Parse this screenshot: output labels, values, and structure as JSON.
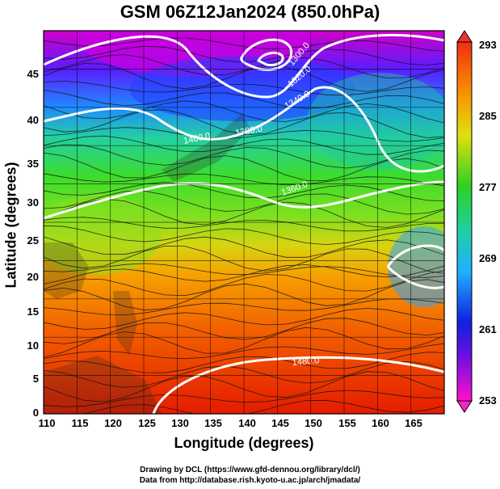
{
  "title": "GSM 06Z12Jan2024 (850.0hPa)",
  "xaxis": {
    "label": "Longitude (degrees)",
    "ticks": [
      "110",
      "115",
      "120",
      "125",
      "130",
      "135",
      "140",
      "145",
      "150",
      "155",
      "160",
      "165"
    ],
    "range": [
      110,
      170
    ]
  },
  "yaxis": {
    "label": "Latitude  (degrees)",
    "ticks": [
      "0",
      "5",
      "10",
      "15",
      "20",
      "25",
      "30",
      "35",
      "40",
      "45"
    ],
    "range": [
      0,
      50
    ]
  },
  "colorbar": {
    "ticks": [
      "253",
      "261",
      "269",
      "277",
      "285",
      "293"
    ],
    "range": [
      253,
      293
    ]
  },
  "contour_labels": [
    "1400.0",
    "1380.0",
    "1360.0",
    "1340.0",
    "1320.0",
    "1300.0",
    "1480.0"
  ],
  "credits": {
    "line1": "Drawing by DCL (https://www.gfd-dennou.org/library/dcl/)",
    "line2": "Data from http://database.rish.kyoto-u.ac.jp/arch/jmadata/"
  },
  "colors": {
    "cold": "#d800d8",
    "cool": "#1a3cff",
    "mid": "#2ad63a",
    "warm": "#ffd000",
    "hot": "#e81a00"
  }
}
